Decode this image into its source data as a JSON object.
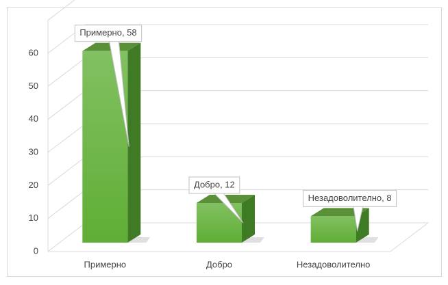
{
  "chart_data": {
    "type": "bar3d",
    "categories": [
      "Примерно",
      "Добро",
      "Незадоволително"
    ],
    "values": [
      58,
      12,
      8
    ],
    "value_labels": [
      "Примерно, 58",
      "Добро, 12",
      "Незадоволително, 8"
    ],
    "color": "#6db33f",
    "ylim": [
      0,
      70
    ],
    "yticks": [
      0,
      10,
      20,
      30,
      40,
      50,
      60
    ],
    "grid": true
  }
}
